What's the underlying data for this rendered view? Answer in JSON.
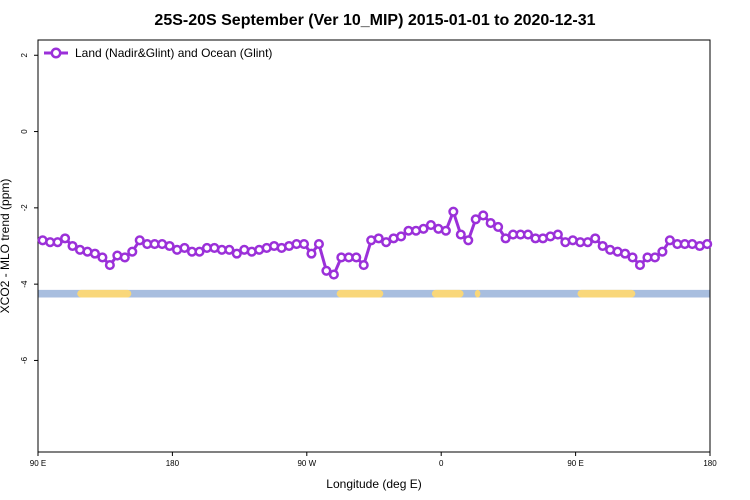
{
  "chart_data": {
    "type": "line",
    "title": "25S-20S September (Ver 10_MIP)   2015-01-01 to 2020-12-31",
    "xlabel": "Longitude (deg E)",
    "ylabel": "XCO2 - MLO trend (ppm)",
    "xlim": [
      90,
      450
    ],
    "ylim": [
      -8.4,
      2.4
    ],
    "x_ticks": [
      {
        "value": 90,
        "label": "90 E"
      },
      {
        "value": 162,
        "label": "180"
      },
      {
        "value": 234,
        "label": "90 W"
      },
      {
        "value": 306,
        "label": "0"
      },
      {
        "value": 378,
        "label": "90 E"
      },
      {
        "value": 450,
        "label": "180"
      }
    ],
    "y_ticks": [
      {
        "value": 2,
        "label": "2"
      },
      {
        "value": 0,
        "label": "0"
      },
      {
        "value": -2,
        "label": "-2"
      },
      {
        "value": -4,
        "label": "-4"
      },
      {
        "value": -6,
        "label": "-6"
      }
    ],
    "legend": {
      "position": "top-left",
      "entries": [
        "Land (Nadir&Glint) and Ocean (Glint)"
      ]
    },
    "series": [
      {
        "name": "Land (Nadir&Glint) and Ocean (Glint)",
        "color": "#9b30d9",
        "x": [
          92.5,
          96.5,
          100.5,
          104.5,
          108.5,
          112.5,
          116.5,
          120.5,
          124.5,
          128.5,
          132.5,
          136.5,
          140.5,
          144.5,
          148.5,
          152.5,
          156.5,
          160.5,
          164.5,
          168.5,
          172.5,
          176.5,
          180.5,
          184.5,
          188.5,
          192.5,
          196.5,
          200.5,
          204.5,
          208.5,
          212.5,
          216.5,
          220.5,
          224.5,
          228.5,
          232.5,
          236.5,
          240.5,
          244.5,
          248.5,
          252.5,
          256.5,
          260.5,
          264.5,
          268.5,
          272.5,
          276.5,
          280.5,
          284.5,
          288.5,
          292.5,
          296.5,
          300.5,
          304.5,
          308.5,
          312.5,
          316.5,
          320.5,
          324.5,
          328.5,
          332.5,
          336.5,
          340.5,
          344.5,
          348.5,
          352.5,
          356.5,
          360.5,
          364.5,
          368.5,
          372.5,
          376.5,
          380.5,
          384.5,
          388.5,
          392.5,
          396.5,
          400.5,
          404.5,
          408.5,
          412.5,
          416.5,
          420.5,
          424.5,
          428.5,
          432.5,
          436.5,
          440.5,
          444.5,
          448.5
        ],
        "y": [
          -2.85,
          -2.9,
          -2.9,
          -2.8,
          -3.0,
          -3.1,
          -3.15,
          -3.2,
          -3.3,
          -3.5,
          -3.25,
          -3.3,
          -3.15,
          -2.85,
          -2.95,
          -2.95,
          -2.95,
          -3.0,
          -3.1,
          -3.05,
          -3.15,
          -3.15,
          -3.05,
          -3.05,
          -3.1,
          -3.1,
          -3.2,
          -3.1,
          -3.15,
          -3.1,
          -3.05,
          -3.0,
          -3.05,
          -3.0,
          -2.95,
          -2.95,
          -3.2,
          -2.95,
          -3.65,
          -3.75,
          -3.3,
          -3.3,
          -3.3,
          -3.5,
          -2.85,
          -2.8,
          -2.9,
          -2.8,
          -2.75,
          -2.6,
          -2.6,
          -2.55,
          -2.45,
          -2.55,
          -2.6,
          -2.1,
          -2.7,
          -2.85,
          -2.3,
          -2.2,
          -2.4,
          -2.5,
          -2.8,
          -2.7,
          -2.7,
          -2.7,
          -2.8,
          -2.8,
          -2.75,
          -2.7,
          -2.9,
          -2.85,
          -2.9,
          -2.9,
          -2.8,
          -3.0,
          -3.1,
          -3.15,
          -3.2,
          -3.3,
          -3.5,
          -3.3,
          -3.3,
          -3.15,
          -2.85,
          -2.95,
          -2.95,
          -2.95,
          -3.0,
          -2.95
        ]
      }
    ],
    "surface_strip": {
      "y_range": [
        -4.35,
        -4.15
      ],
      "ocean_color": "#a8bedf",
      "land_color": "#f9d77a",
      "land_intervals": [
        [
          111,
          140
        ],
        [
          250,
          275
        ],
        [
          301,
          318
        ],
        [
          324,
          327
        ],
        [
          379,
          410
        ]
      ]
    }
  }
}
